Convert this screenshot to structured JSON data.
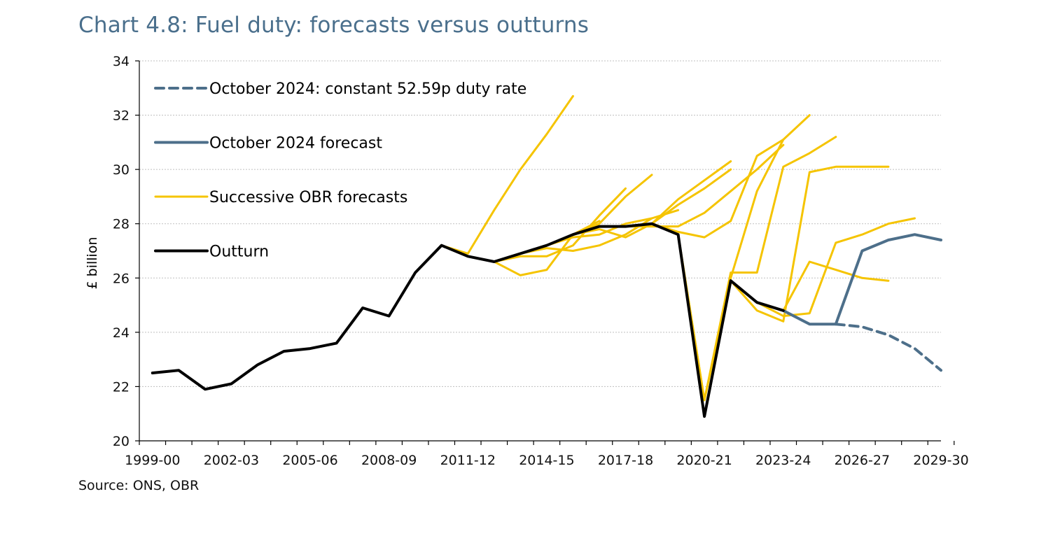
{
  "title": "Chart 4.8: Fuel duty: forecasts versus outturns",
  "source": "Source: ONS, OBR",
  "colors": {
    "outturn": "#000000",
    "obr_forecasts": "#F5C400",
    "oct2024": "#4D6F8A",
    "grid": "#BFBFBF",
    "axis": "#000000"
  },
  "chart_data": {
    "type": "line",
    "ylabel": "£ billion",
    "ylim": [
      20,
      34
    ],
    "yticks": [
      20,
      22,
      24,
      26,
      28,
      30,
      32,
      34
    ],
    "xtick_labels": [
      "1999-00",
      "2002-03",
      "2005-06",
      "2008-09",
      "2011-12",
      "2014-15",
      "2017-18",
      "2020-21",
      "2023-24",
      "2026-27",
      "2029-30"
    ],
    "years": [
      "1999-00",
      "2000-01",
      "2001-02",
      "2002-03",
      "2003-04",
      "2004-05",
      "2005-06",
      "2006-07",
      "2007-08",
      "2008-09",
      "2009-10",
      "2010-11",
      "2011-12",
      "2012-13",
      "2013-14",
      "2014-15",
      "2015-16",
      "2016-17",
      "2017-18",
      "2018-19",
      "2019-20",
      "2020-21",
      "2021-22",
      "2022-23",
      "2023-24",
      "2024-25",
      "2025-26",
      "2026-27",
      "2027-28",
      "2028-29",
      "2029-30"
    ],
    "legend": [
      {
        "key": "constant",
        "label": "October 2024: constant 52.59p duty rate",
        "style": "dashed",
        "color": "#4D6F8A"
      },
      {
        "key": "oct2024",
        "label": "October 2024 forecast",
        "style": "solid",
        "color": "#4D6F8A"
      },
      {
        "key": "obr",
        "label": "Successive OBR forecasts",
        "style": "solid",
        "color": "#F5C400"
      },
      {
        "key": "outturn",
        "label": "Outturn",
        "style": "solid",
        "color": "#000000"
      }
    ],
    "outturn": {
      "start": 0,
      "values": [
        22.5,
        22.6,
        21.9,
        22.1,
        22.8,
        23.3,
        23.4,
        23.6,
        24.9,
        24.6,
        26.2,
        27.2,
        26.8,
        26.6,
        26.9,
        27.2,
        27.6,
        27.9,
        27.9,
        28.0,
        27.6,
        20.9,
        25.9,
        25.1,
        24.8
      ]
    },
    "october_2024_forecast": {
      "start": 24,
      "values": [
        24.8,
        24.3,
        24.3,
        27.0,
        27.4,
        27.6,
        27.4
      ]
    },
    "october_2024_constant_rate": {
      "start": 26,
      "values": [
        24.3,
        24.2,
        23.9,
        23.4,
        22.6
      ]
    },
    "obr_forecasts": [
      {
        "start": 11,
        "values": [
          27.2,
          26.9,
          28.5,
          30.0,
          31.3,
          32.7
        ]
      },
      {
        "start": 12,
        "values": [
          26.8,
          26.6,
          26.1,
          26.3,
          27.6,
          28.1
        ]
      },
      {
        "start": 13,
        "values": [
          26.6,
          26.8,
          26.8,
          27.2,
          28.3,
          29.3
        ]
      },
      {
        "start": 14,
        "values": [
          26.9,
          27.1,
          27.0,
          27.2,
          27.6,
          28.2
        ]
      },
      {
        "start": 15,
        "values": [
          27.2,
          27.5,
          27.6,
          28.0,
          28.2,
          28.5
        ]
      },
      {
        "start": 16,
        "values": [
          27.6,
          27.8,
          27.5,
          28.0,
          28.9,
          29.6,
          30.3
        ]
      },
      {
        "start": 16,
        "values": [
          27.6,
          28.0,
          29.0,
          29.8
        ]
      },
      {
        "start": 18,
        "values": [
          27.9,
          27.9,
          27.9,
          28.4,
          29.2,
          30.0,
          30.9
        ]
      },
      {
        "start": 19,
        "values": [
          28.0,
          27.7,
          27.5,
          28.1,
          30.5,
          31.1
        ]
      },
      {
        "start": 19,
        "values": [
          28.0,
          28.7,
          29.3,
          30.0
        ]
      },
      {
        "start": 20,
        "values": [
          27.6,
          21.5,
          26.2,
          26.2,
          30.1,
          30.6,
          31.2
        ]
      },
      {
        "start": 20,
        "values": [
          27.6,
          21.5,
          26.0,
          29.2,
          31.1,
          32.0
        ]
      },
      {
        "start": 22,
        "values": [
          25.9,
          24.8,
          24.4,
          29.9,
          30.1,
          30.1,
          30.1
        ]
      },
      {
        "start": 22,
        "values": [
          25.9,
          25.1,
          24.6,
          24.7,
          27.3,
          27.6,
          28.0,
          28.2
        ]
      },
      {
        "start": 23,
        "values": [
          25.1,
          24.8,
          26.6,
          26.3,
          26.0,
          25.9
        ]
      }
    ]
  }
}
